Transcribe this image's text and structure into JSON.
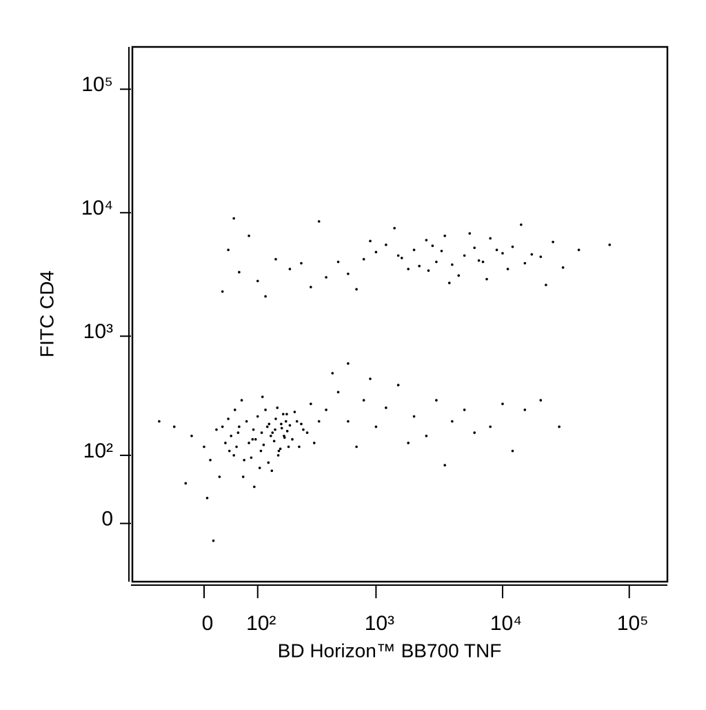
{
  "chart_data": {
    "type": "scatter",
    "x_label": "BD Horizon™ BB700 TNF",
    "y_label": "FITC CD4",
    "xscale": "arcsinh",
    "yscale": "arcsinh",
    "xlim": [
      -150,
      200000
    ],
    "ylim": [
      -80,
      220000
    ],
    "xticks": [
      0,
      {
        "value": 100,
        "label": "10²"
      },
      {
        "value": 1000,
        "label": "10³"
      },
      {
        "value": 10000,
        "label": "10⁴"
      },
      {
        "value": 100000,
        "label": "10⁵"
      }
    ],
    "yticks": [
      0,
      {
        "value": 100,
        "label": "10²"
      },
      {
        "value": 1000,
        "label": "10³"
      },
      {
        "value": 10000,
        "label": "10⁴"
      },
      {
        "value": 100000,
        "label": "10⁵"
      }
    ],
    "color": "#000000",
    "x": [
      45,
      60,
      75,
      90,
      110,
      130,
      150,
      170,
      190,
      210,
      55,
      80,
      100,
      120,
      140,
      160,
      180,
      200,
      230,
      260,
      30,
      50,
      70,
      95,
      115,
      135,
      155,
      175,
      195,
      250,
      65,
      85,
      105,
      125,
      145,
      165,
      185,
      220,
      280,
      320,
      40,
      58,
      88,
      108,
      128,
      148,
      168,
      188,
      240,
      300,
      20,
      35,
      52,
      68,
      92,
      112,
      138,
      158,
      178,
      350,
      -20,
      -50,
      0,
      10,
      25,
      -80,
      5,
      15,
      -30,
      42,
      400,
      500,
      600,
      800,
      1000,
      1200,
      1500,
      2000,
      2500,
      3000,
      4000,
      5000,
      6000,
      8000,
      10000,
      15000,
      20000,
      28000,
      700,
      900,
      3500,
      450,
      1800,
      600,
      12000,
      1500,
      2000,
      2500,
      3000,
      1800,
      1200,
      1000,
      800,
      3500,
      4000,
      5000,
      6000,
      7000,
      8000,
      9000,
      10000,
      12000,
      15000,
      20000,
      25000,
      30000,
      40000,
      70000,
      600,
      500,
      400,
      300,
      200,
      150,
      100,
      80,
      60,
      40,
      30,
      1400,
      2200,
      2800,
      3300,
      4500,
      5500,
      6500,
      7500,
      11000,
      14000,
      17000,
      22000,
      900,
      700,
      350,
      250,
      120,
      50,
      1600,
      2600,
      3800
    ],
    "values": [
      150,
      180,
      200,
      170,
      160,
      190,
      210,
      175,
      165,
      140,
      120,
      130,
      220,
      250,
      160,
      110,
      145,
      185,
      200,
      170,
      180,
      100,
      90,
      140,
      125,
      150,
      260,
      230,
      120,
      190,
      300,
      95,
      75,
      180,
      135,
      115,
      200,
      240,
      160,
      130,
      210,
      160,
      140,
      110,
      85,
      170,
      190,
      230,
      120,
      280,
      170,
      130,
      250,
      60,
      45,
      320,
      70,
      100,
      150,
      200,
      150,
      180,
      120,
      90,
      60,
      200,
      30,
      -20,
      50,
      110,
      250,
      350,
      200,
      300,
      180,
      260,
      400,
      220,
      150,
      300,
      200,
      250,
      160,
      180,
      280,
      250,
      300,
      180,
      120,
      450,
      80,
      500,
      130,
      600,
      110,
      4500,
      5000,
      6000,
      4000,
      3500,
      5500,
      4800,
      4200,
      6500,
      3800,
      4500,
      5200,
      4000,
      6200,
      5000,
      4700,
      5300,
      3900,
      4400,
      5800,
      3600,
      5000,
      5500,
      3200,
      4000,
      3000,
      2500,
      3500,
      4200,
      2800,
      6500,
      3300,
      5000,
      2300,
      7500,
      3700,
      5400,
      4900,
      3100,
      6800,
      4100,
      2900,
      3500,
      8000,
      4600,
      2600,
      5900,
      2400,
      8500,
      3900,
      2100,
      9000,
      4300,
      3400,
      2700
    ]
  }
}
